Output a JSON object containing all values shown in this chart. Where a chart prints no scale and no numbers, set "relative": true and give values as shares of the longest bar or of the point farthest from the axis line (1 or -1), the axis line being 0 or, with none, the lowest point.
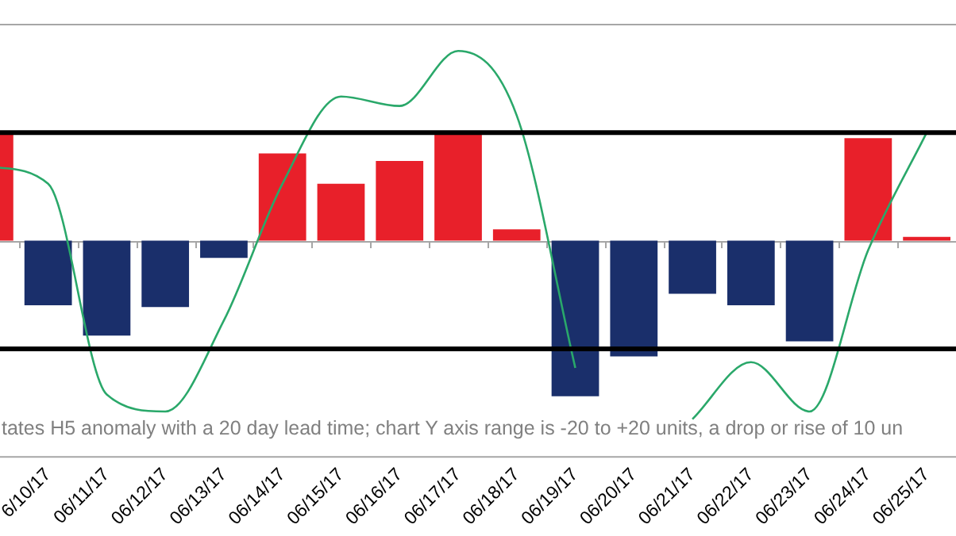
{
  "chart_data": {
    "type": "bar",
    "relative": true,
    "categories": [
      null,
      "6/10/17",
      "06/11/17",
      "06/12/17",
      "06/13/17",
      "06/14/17",
      "06/15/17",
      "06/16/17",
      "06/17/17",
      "06/18/17",
      "06/19/17",
      "06/20/17",
      "06/21/17",
      "06/22/17",
      "06/23/17",
      "06/24/17",
      "06/25/17"
    ],
    "series": [
      {
        "colors": [
          "#e8202a",
          "#1a2f6b",
          "#1a2f6b",
          "#1a2f6b",
          "#1a2f6b",
          "#e8202a",
          "#e8202a",
          "#e8202a",
          "#e8202a",
          "#e8202a",
          "#1a2f6b",
          "#1a2f6b",
          "#1a2f6b",
          "#1a2f6b",
          "#1a2f6b",
          "#e8202a",
          "#e8202a"
        ],
        "values": [
          0.57,
          -0.34,
          -0.5,
          -0.35,
          -0.09,
          0.46,
          0.3,
          0.42,
          0.57,
          0.06,
          -0.82,
          -0.61,
          -0.28,
          -0.34,
          -0.53,
          0.54,
          0.02
        ]
      },
      {
        "type": "line",
        "color": "#2aa86a",
        "values": [
          0.39,
          0.3,
          -0.81,
          -0.9,
          -0.42,
          0.3,
          0.76,
          0.71,
          1,
          0.66,
          -0.67,
          null,
          -0.94,
          -0.64,
          -0.9,
          -0.05,
          0.57
        ]
      }
    ],
    "legend": false,
    "marker": "none",
    "line_style": "solid",
    "ref_lines": [
      {
        "axis": "y",
        "value": 0.57,
        "color": "#000000"
      },
      {
        "axis": "y",
        "value": -0.57,
        "color": "#000000"
      }
    ],
    "annotations": [
      "tates H5 anomaly with a 20 day lead time; chart Y axis range is -20 to +20 units, a drop or rise of 10 un"
    ]
  }
}
